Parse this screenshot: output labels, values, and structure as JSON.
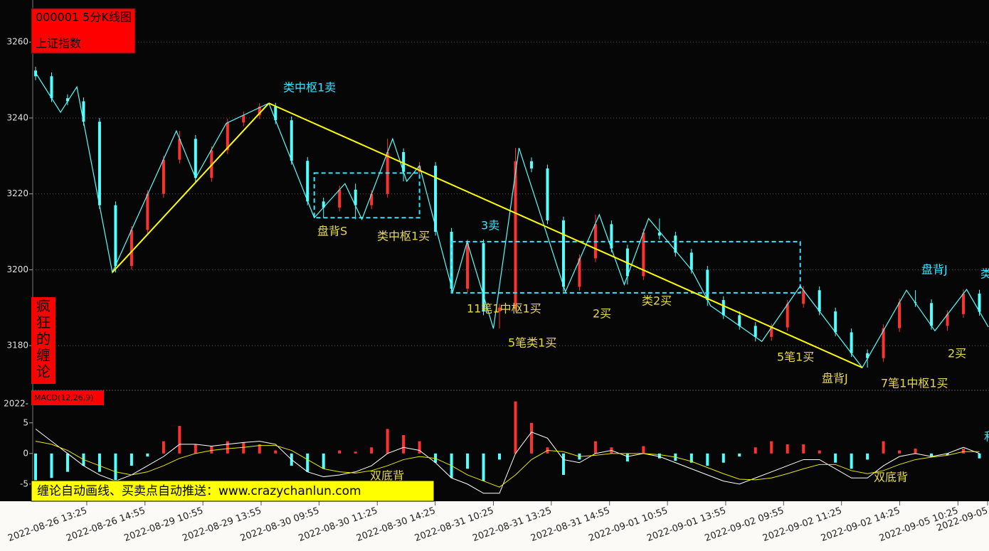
{
  "header": {
    "code_title": "000001 5分K线图",
    "index_name": "上证指数"
  },
  "side_label": [
    "疯",
    "狂",
    "的",
    "缠",
    "论"
  ],
  "banner": "缠论自动画线、买卖点自动推送：www.crazychanlun.com",
  "chart_data": [
    {
      "type": "candlestick",
      "x": [
        0,
        5,
        10,
        15,
        20,
        25,
        30,
        35,
        40,
        45,
        50,
        55,
        60,
        65,
        70,
        75,
        80,
        85,
        90,
        95,
        100,
        105,
        110,
        115,
        120,
        125,
        130,
        135,
        140,
        145,
        150,
        155,
        160,
        165,
        170,
        175,
        180,
        185,
        190,
        195,
        200,
        205,
        210,
        215,
        220,
        225,
        230,
        235,
        240,
        245,
        250,
        255,
        260,
        265,
        270,
        275,
        280,
        285,
        290,
        295
      ],
      "open": [
        3252.5,
        3251.0,
        3245.2,
        3244.4,
        3239.0,
        3217.0,
        3201.0,
        3210.5,
        3220.0,
        3229.0,
        3234.5,
        3224.2,
        3231.5,
        3238.8,
        3240.7,
        3243.0,
        3239.4,
        3228.7,
        3218.0,
        3216.4,
        3221.1,
        3217.0,
        3220.0,
        3231.0,
        3225.8,
        3227.4,
        3210.0,
        3195.0,
        3207.0,
        3189.0,
        3190.0,
        3228.6,
        3226.7,
        3213.0,
        3195.5,
        3203.0,
        3212.0,
        3205.6,
        3198.3,
        3209.8,
        3209.0,
        3204.5,
        3200.0,
        3192.0,
        3188.0,
        3185.2,
        3182.3,
        3184.8,
        3191.0,
        3194.6,
        3189.0,
        3183.5,
        3178.0,
        3176.7,
        3184.6,
        3191.4,
        3191.2,
        3185.2,
        3188.3,
        3193.7
      ],
      "high": [
        3253.5,
        3252.0,
        3246.2,
        3245.4,
        3240.0,
        3218.0,
        3211.5,
        3221.0,
        3230.0,
        3236.6,
        3235.5,
        3232.5,
        3239.8,
        3241.7,
        3243.9,
        3244.0,
        3240.4,
        3229.7,
        3219.0,
        3222.1,
        3222.7,
        3221.0,
        3234.5,
        3232.0,
        3228.4,
        3228.4,
        3211.0,
        3208.0,
        3208.0,
        3191.0,
        3232.1,
        3229.6,
        3227.7,
        3214.0,
        3204.0,
        3214.5,
        3213.0,
        3206.6,
        3210.8,
        3213.5,
        3210.0,
        3205.5,
        3201.0,
        3193.0,
        3189.0,
        3186.2,
        3185.8,
        3192.0,
        3195.7,
        3195.6,
        3190.0,
        3184.5,
        3179.0,
        3185.6,
        3192.4,
        3194.6,
        3192.2,
        3189.3,
        3194.8,
        3194.7
      ],
      "low": [
        3250.0,
        3244.2,
        3243.4,
        3238.0,
        3216.0,
        3199.3,
        3200.0,
        3209.5,
        3219.0,
        3228.0,
        3223.2,
        3223.2,
        3230.5,
        3237.8,
        3239.7,
        3238.4,
        3227.7,
        3217.0,
        3213.7,
        3215.4,
        3213.3,
        3216.0,
        3219.0,
        3223.3,
        3224.8,
        3209.0,
        3194.0,
        3194.0,
        3188.0,
        3184.5,
        3189.0,
        3225.7,
        3212.0,
        3194.2,
        3194.5,
        3202.0,
        3204.6,
        3196.1,
        3197.3,
        3208.0,
        3203.5,
        3199.0,
        3190.5,
        3187.0,
        3184.2,
        3181.1,
        3181.3,
        3183.8,
        3190.0,
        3188.0,
        3182.5,
        3177.0,
        3174.2,
        3175.7,
        3183.6,
        3190.2,
        3184.2,
        3183.9,
        3187.3,
        3187.9
      ],
      "close": [
        3251.0,
        3245.2,
        3244.4,
        3239.0,
        3217.0,
        3201.0,
        3210.5,
        3220.0,
        3229.0,
        3234.5,
        3224.2,
        3231.5,
        3238.8,
        3240.7,
        3243.0,
        3239.4,
        3228.7,
        3218.0,
        3216.4,
        3221.1,
        3217.0,
        3220.0,
        3231.0,
        3225.8,
        3227.4,
        3210.0,
        3195.0,
        3207.0,
        3189.0,
        3190.0,
        3228.6,
        3226.7,
        3213.0,
        3195.5,
        3203.0,
        3212.0,
        3205.6,
        3198.3,
        3209.8,
        3209.0,
        3204.5,
        3200.0,
        3192.0,
        3188.0,
        3185.2,
        3182.3,
        3184.8,
        3191.0,
        3194.6,
        3189.0,
        3183.5,
        3178.0,
        3176.7,
        3184.6,
        3191.4,
        3191.2,
        3185.2,
        3188.3,
        3193.7,
        3188.9
      ],
      "up_color": "#ff3232",
      "down_color": "#54ffff",
      "xlim": [
        0,
        298
      ],
      "ylim": [
        3168.4,
        3271.1
      ],
      "yticks": [
        3180,
        3200,
        3220,
        3240,
        3260
      ],
      "grid": true,
      "pen": {
        "color": "#54ffff",
        "x": [
          0.4,
          7.8,
          12.9,
          24,
          44,
          50,
          59.6,
          72.9,
          87.1,
          96.7,
          102,
          111.6,
          116,
          120,
          130.4,
          134.9,
          143.1,
          151.1,
          165.6,
          176.2,
          184,
          191.6,
          205.1,
          211,
          227,
          239,
          258.4,
          272.2,
          281.1,
          291,
          297.8
        ],
        "y": [
          3251.4,
          3241.5,
          3248.2,
          3199.3,
          3236.6,
          3224.2,
          3238.6,
          3243.9,
          3213.7,
          3222.7,
          3213.3,
          3234.5,
          3223.3,
          3227.4,
          3194.2,
          3207.4,
          3184.5,
          3232.1,
          3194.2,
          3214.5,
          3196.1,
          3213.5,
          3199.9,
          3190.5,
          3181.1,
          3195.7,
          3174.2,
          3194.6,
          3183.9,
          3194.8,
          3184.9
        ]
      },
      "trend_lines": [
        {
          "color": "#ffff00",
          "x": [
            24,
            72.9
          ],
          "y": [
            3199.3,
            3243.9
          ]
        },
        {
          "color": "#ffff00",
          "x": [
            72.9,
            258.4
          ],
          "y": [
            3243.9,
            3174.2
          ]
        }
      ],
      "boxes": [
        {
          "color": "#33e6ff",
          "x": [
            87.1,
            120
          ],
          "y": [
            3213.7,
            3225.5
          ]
        },
        {
          "color": "#33e6ff",
          "x": [
            130,
            239
          ],
          "y": [
            3193.9,
            3207.4
          ]
        }
      ],
      "annotations": [
        {
          "text": "类中枢1卖",
          "color": "#33e6ff"
        },
        {
          "text": "盘背S",
          "color": "#e6d84a"
        },
        {
          "text": "类中枢1买",
          "color": "#e6d84a"
        },
        {
          "text": "3卖",
          "color": "#33e6ff"
        },
        {
          "text": "11笔1中枢1买",
          "color": "#e6d84a"
        },
        {
          "text": "5笔类1买",
          "color": "#e6d84a"
        },
        {
          "text": "2买",
          "color": "#e6d84a"
        },
        {
          "text": "类2买",
          "color": "#e6d84a"
        },
        {
          "text": "5笔1买",
          "color": "#e6d84a"
        },
        {
          "text": "盘背J",
          "color": "#e6d84a"
        },
        {
          "text": "7笔1中枢1买",
          "color": "#e6d84a"
        },
        {
          "text": "盘背J",
          "color": "#33e6ff"
        },
        {
          "text": "类",
          "color": "#33e6ff"
        },
        {
          "text": "2买",
          "color": "#e6d84a"
        }
      ]
    },
    {
      "type": "macd",
      "label": "MACD(12,26,9)",
      "corner_label": "2022-",
      "x": [
        0,
        5,
        10,
        15,
        20,
        25,
        30,
        35,
        40,
        45,
        50,
        55,
        60,
        65,
        70,
        75,
        80,
        85,
        90,
        95,
        100,
        105,
        110,
        115,
        120,
        125,
        130,
        135,
        140,
        145,
        150,
        155,
        160,
        165,
        170,
        175,
        180,
        185,
        190,
        195,
        200,
        205,
        210,
        215,
        220,
        225,
        230,
        235,
        240,
        245,
        250,
        255,
        260,
        265,
        270,
        275,
        280,
        285,
        290,
        295
      ],
      "histogram": [
        -4.5,
        -4,
        -3,
        -2,
        -3,
        -4.5,
        -2,
        -0.5,
        2,
        4.5,
        1.5,
        1.2,
        2,
        1.8,
        1.5,
        0.5,
        -2,
        -3,
        -2.5,
        0.5,
        0.3,
        1,
        4,
        3,
        2,
        -1.5,
        -4,
        -2.5,
        -4.5,
        -1,
        8.5,
        5,
        1,
        -3.5,
        -1,
        2,
        1,
        -1.3,
        1.2,
        -0.8,
        -1.2,
        -1.5,
        -2,
        -1.5,
        -0.5,
        1,
        2,
        1.5,
        1.5,
        0.5,
        -1.5,
        -2.5,
        -1,
        2,
        0.5,
        0.8,
        -0.5,
        -0.3,
        0.8,
        -0.8
      ],
      "up_color": "#ff3232",
      "down_color": "#54ffff",
      "lines": [
        {
          "color": "#ffffff",
          "values": [
            4,
            2,
            0,
            -2,
            -3.5,
            -4.5,
            -3.5,
            -2,
            -0.5,
            1.5,
            1.5,
            1.2,
            1.5,
            1.8,
            2,
            1.5,
            -1,
            -3,
            -3.8,
            -3.5,
            -3,
            -2,
            0,
            1,
            0.5,
            -1.5,
            -4,
            -5,
            -6.5,
            -6.5,
            0,
            3.5,
            2.5,
            -1,
            -1.5,
            0,
            0.5,
            -0.5,
            0,
            -0.5,
            -1.5,
            -2.5,
            -3.5,
            -4.5,
            -5,
            -4,
            -3,
            -2,
            -1,
            -1,
            -2.5,
            -4,
            -4,
            -2,
            -0.5,
            0,
            -0.5,
            0,
            1,
            0
          ]
        },
        {
          "color": "#e8e800",
          "values": [
            2,
            1.5,
            0.5,
            -1,
            -2,
            -3,
            -3.5,
            -3,
            -2,
            -0.8,
            0,
            0.5,
            0.8,
            1,
            1.3,
            1.3,
            0.5,
            -1,
            -2.5,
            -3,
            -3.2,
            -2.8,
            -2,
            -1,
            -0.5,
            -0.8,
            -2,
            -3.5,
            -4.5,
            -5.5,
            -3.5,
            -1,
            0.5,
            0.3,
            -0.5,
            -0.3,
            0,
            0,
            0,
            -0.2,
            -0.6,
            -1.3,
            -2.3,
            -3.3,
            -4.2,
            -4.3,
            -4,
            -3.3,
            -2.5,
            -1.8,
            -1.8,
            -2.8,
            -3.3,
            -2.8,
            -1.8,
            -1,
            -0.6,
            -0.3,
            0.3,
            0.3
          ]
        }
      ],
      "xlim": [
        0,
        298
      ],
      "ylim": [
        -7.8,
        10.2
      ],
      "yticks": [
        5,
        0,
        -5
      ],
      "xticks": [
        {
          "value": 16,
          "label": "2022-08-26 13:25"
        },
        {
          "value": 34.2,
          "label": "2022-08-26 14:55"
        },
        {
          "value": 52.3,
          "label": "2022-08-29 10:55"
        },
        {
          "value": 70.5,
          "label": "2022-08-29 13:55"
        },
        {
          "value": 88.6,
          "label": "2022-08-30 09:55"
        },
        {
          "value": 106.8,
          "label": "2022-08-30 11:25"
        },
        {
          "value": 124.9,
          "label": "2022-08-30 14:25"
        },
        {
          "value": 143.1,
          "label": "2022-08-31 10:25"
        },
        {
          "value": 161.2,
          "label": "2022-08-31 13:25"
        },
        {
          "value": 179.4,
          "label": "2022-08-31 14:55"
        },
        {
          "value": 197.5,
          "label": "2022-09-01 10:55"
        },
        {
          "value": 215.7,
          "label": "2022-09-01 13:55"
        },
        {
          "value": 233.8,
          "label": "2022-09-02 09:55"
        },
        {
          "value": 251.9,
          "label": "2022-09-02 11:25"
        },
        {
          "value": 270.1,
          "label": "2022-09-02 14:25"
        },
        {
          "value": 288.3,
          "label": "2022-09-05 10:25"
        },
        {
          "value": 298,
          "label": "2022-09-05"
        }
      ],
      "annotations": [
        {
          "text": "双底背",
          "color": "#e6d84a"
        },
        {
          "text": "双底背",
          "color": "#e6d84a"
        },
        {
          "text": "和",
          "color": "#33e6ff"
        }
      ]
    }
  ]
}
